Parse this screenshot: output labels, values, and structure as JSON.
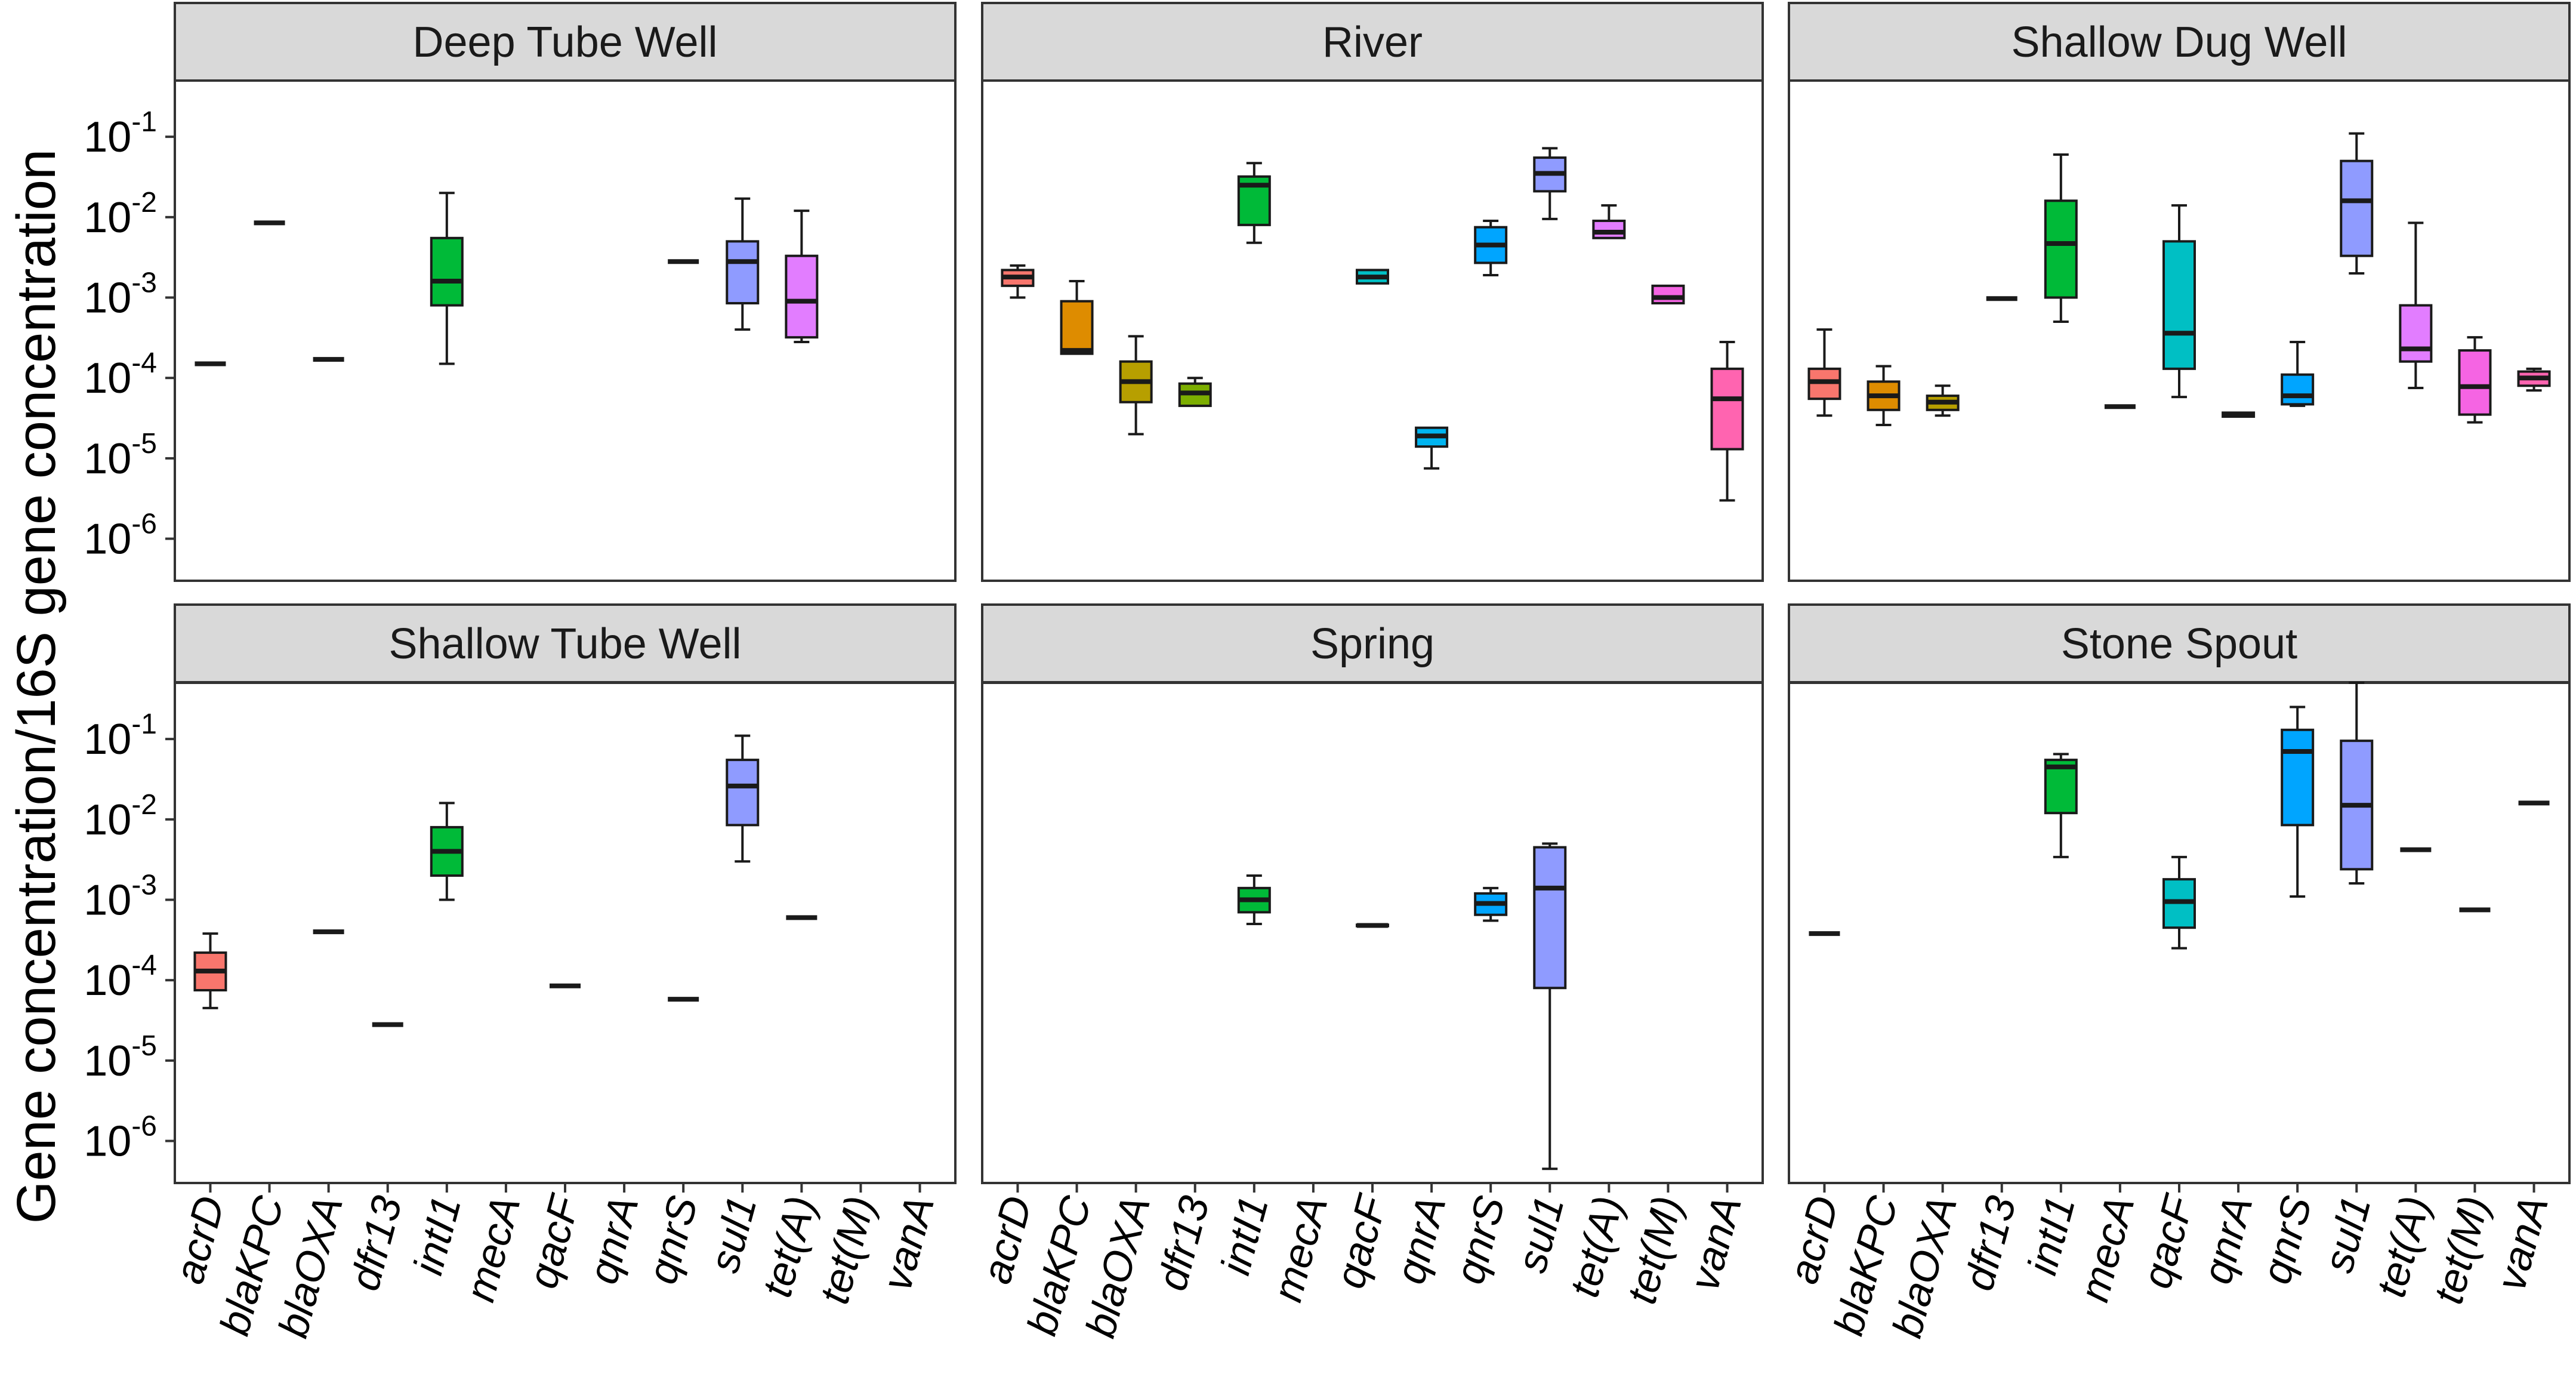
{
  "chart_data": {
    "type": "boxplot",
    "scale": "log10",
    "ylabel": "Gene concentration/16S gene concentration",
    "ylim": [
      3e-07,
      0.5
    ],
    "yticks": [
      0.1,
      0.01,
      0.001,
      0.0001,
      1e-05,
      1e-06
    ],
    "ytick_labels": [
      "10",
      "10",
      "10",
      "10",
      "10",
      "10"
    ],
    "ytick_exponents": [
      "-1",
      "-2",
      "-3",
      "-4",
      "-5",
      "-6"
    ],
    "categories": [
      "acrD",
      "blaKPC",
      "blaOXA",
      "dfr13",
      "intI1",
      "mecA",
      "qacF",
      "qnrA",
      "qnrS",
      "sul1",
      "tet(A)",
      "tet(M)",
      "vanA"
    ],
    "colors": {
      "acrD": "#F8766D",
      "blaKPC": "#DE8C00",
      "blaOXA": "#B79F00",
      "dfr13": "#7CAE00",
      "intI1": "#00BA38",
      "mecA": "#00C08B",
      "qacF": "#00BFC4",
      "qnrA": "#00B4F0",
      "qnrS": "#00A5FF",
      "sul1": "#8F9BFF",
      "tet(A)": "#E27DFF",
      "tet(M)": "#F564E3",
      "vanA": "#FF64B0"
    },
    "panels": [
      {
        "title": "Deep Tube Well",
        "boxes": [
          {
            "gene": "acrD",
            "min": 0.00015,
            "q1": 0.00015,
            "median": 0.00015,
            "q3": 0.00015,
            "max": 0.00015
          },
          {
            "gene": "blaKPC",
            "min": 0.0085,
            "q1": 0.0085,
            "median": 0.0085,
            "q3": 0.0085,
            "max": 0.0085
          },
          {
            "gene": "blaOXA",
            "min": 0.00017,
            "q1": 0.00017,
            "median": 0.00017,
            "q3": 0.00017,
            "max": 0.00017
          },
          {
            "gene": "intI1",
            "min": 0.00015,
            "q1": 0.0008,
            "median": 0.0016,
            "q3": 0.0055,
            "max": 0.02
          },
          {
            "gene": "qnrS",
            "min": 0.0028,
            "q1": 0.0028,
            "median": 0.0028,
            "q3": 0.0028,
            "max": 0.0028
          },
          {
            "gene": "sul1",
            "min": 0.0004,
            "q1": 0.00085,
            "median": 0.0028,
            "q3": 0.005,
            "max": 0.017
          },
          {
            "gene": "tet(A)",
            "min": 0.00028,
            "q1": 0.00032,
            "median": 0.0009,
            "q3": 0.0033,
            "max": 0.012
          }
        ]
      },
      {
        "title": "River",
        "boxes": [
          {
            "gene": "acrD",
            "min": 0.001,
            "q1": 0.0014,
            "median": 0.0018,
            "q3": 0.0022,
            "max": 0.0025
          },
          {
            "gene": "blaKPC",
            "min": 0.0002,
            "q1": 0.0002,
            "median": 0.00022,
            "q3": 0.0009,
            "max": 0.0016
          },
          {
            "gene": "blaOXA",
            "min": 2e-05,
            "q1": 5e-05,
            "median": 9e-05,
            "q3": 0.00016,
            "max": 0.00033
          },
          {
            "gene": "dfr13",
            "min": 4.5e-05,
            "q1": 4.5e-05,
            "median": 6.5e-05,
            "q3": 8.5e-05,
            "max": 0.0001
          },
          {
            "gene": "intI1",
            "min": 0.0048,
            "q1": 0.008,
            "median": 0.025,
            "q3": 0.032,
            "max": 0.047
          },
          {
            "gene": "qacF",
            "min": 0.0015,
            "q1": 0.0015,
            "median": 0.0018,
            "q3": 0.0022,
            "max": 0.0022
          },
          {
            "gene": "qnrA",
            "min": 7.5e-06,
            "q1": 1.4e-05,
            "median": 1.9e-05,
            "q3": 2.4e-05,
            "max": 2.4e-05
          },
          {
            "gene": "qnrS",
            "min": 0.0019,
            "q1": 0.0027,
            "median": 0.0045,
            "q3": 0.0075,
            "max": 0.009
          },
          {
            "gene": "sul1",
            "min": 0.0095,
            "q1": 0.021,
            "median": 0.035,
            "q3": 0.055,
            "max": 0.072
          },
          {
            "gene": "tet(A)",
            "min": 0.0055,
            "q1": 0.0055,
            "median": 0.0065,
            "q3": 0.009,
            "max": 0.014
          },
          {
            "gene": "tet(M)",
            "min": 0.00085,
            "q1": 0.00085,
            "median": 0.001,
            "q3": 0.0014,
            "max": 0.0014
          },
          {
            "gene": "vanA",
            "min": 3e-06,
            "q1": 1.3e-05,
            "median": 5.5e-05,
            "q3": 0.00013,
            "max": 0.00028
          }
        ]
      },
      {
        "title": "Shallow Dug Well",
        "boxes": [
          {
            "gene": "acrD",
            "min": 3.4e-05,
            "q1": 5.5e-05,
            "median": 9e-05,
            "q3": 0.00013,
            "max": 0.0004
          },
          {
            "gene": "blaKPC",
            "min": 2.6e-05,
            "q1": 4e-05,
            "median": 6e-05,
            "q3": 9e-05,
            "max": 0.00014
          },
          {
            "gene": "blaOXA",
            "min": 3.4e-05,
            "q1": 4e-05,
            "median": 5e-05,
            "q3": 6e-05,
            "max": 8e-05
          },
          {
            "gene": "dfr13",
            "min": 0.00097,
            "q1": 0.00097,
            "median": 0.00097,
            "q3": 0.00097,
            "max": 0.00097
          },
          {
            "gene": "intI1",
            "min": 0.0005,
            "q1": 0.001,
            "median": 0.0047,
            "q3": 0.016,
            "max": 0.06
          },
          {
            "gene": "mecA",
            "min": 4.4e-05,
            "q1": 4.4e-05,
            "median": 4.4e-05,
            "q3": 4.4e-05,
            "max": 4.4e-05
          },
          {
            "gene": "qacF",
            "min": 5.8e-05,
            "q1": 0.00013,
            "median": 0.00036,
            "q3": 0.005,
            "max": 0.014
          },
          {
            "gene": "qnrA",
            "min": 3.3e-05,
            "q1": 3.3e-05,
            "median": 3.5e-05,
            "q3": 3.7e-05,
            "max": 3.7e-05
          },
          {
            "gene": "qnrS",
            "min": 4.5e-05,
            "q1": 4.7e-05,
            "median": 6e-05,
            "q3": 0.00011,
            "max": 0.00028
          },
          {
            "gene": "sul1",
            "min": 0.002,
            "q1": 0.0033,
            "median": 0.016,
            "q3": 0.05,
            "max": 0.11
          },
          {
            "gene": "tet(A)",
            "min": 7.5e-05,
            "q1": 0.00016,
            "median": 0.00023,
            "q3": 0.0008,
            "max": 0.0085
          },
          {
            "gene": "tet(M)",
            "min": 2.8e-05,
            "q1": 3.5e-05,
            "median": 7.8e-05,
            "q3": 0.00022,
            "max": 0.00032
          },
          {
            "gene": "vanA",
            "min": 7e-05,
            "q1": 8e-05,
            "median": 0.0001,
            "q3": 0.00012,
            "max": 0.00013
          }
        ]
      },
      {
        "title": "Shallow Tube Well",
        "boxes": [
          {
            "gene": "acrD",
            "min": 4.5e-05,
            "q1": 7.5e-05,
            "median": 0.00013,
            "q3": 0.00022,
            "max": 0.00038
          },
          {
            "gene": "blaOXA",
            "min": 0.0004,
            "q1": 0.0004,
            "median": 0.0004,
            "q3": 0.0004,
            "max": 0.0004
          },
          {
            "gene": "dfr13",
            "min": 2.8e-05,
            "q1": 2.8e-05,
            "median": 2.8e-05,
            "q3": 2.8e-05,
            "max": 2.8e-05
          },
          {
            "gene": "intI1",
            "min": 0.001,
            "q1": 0.002,
            "median": 0.004,
            "q3": 0.008,
            "max": 0.016
          },
          {
            "gene": "qacF",
            "min": 8.5e-05,
            "q1": 8.5e-05,
            "median": 8.5e-05,
            "q3": 8.5e-05,
            "max": 8.5e-05
          },
          {
            "gene": "qnrS",
            "min": 5.8e-05,
            "q1": 5.8e-05,
            "median": 5.8e-05,
            "q3": 5.8e-05,
            "max": 5.8e-05
          },
          {
            "gene": "sul1",
            "min": 0.003,
            "q1": 0.0085,
            "median": 0.026,
            "q3": 0.055,
            "max": 0.11
          },
          {
            "gene": "tet(A)",
            "min": 0.0006,
            "q1": 0.0006,
            "median": 0.0006,
            "q3": 0.0006,
            "max": 0.0006
          }
        ]
      },
      {
        "title": "Spring",
        "boxes": [
          {
            "gene": "intI1",
            "min": 0.0005,
            "q1": 0.0007,
            "median": 0.001,
            "q3": 0.0014,
            "max": 0.002
          },
          {
            "gene": "qacF",
            "min": 0.00047,
            "q1": 0.00047,
            "median": 0.00048,
            "q3": 0.00049,
            "max": 0.00049
          },
          {
            "gene": "qnrS",
            "min": 0.00055,
            "q1": 0.00065,
            "median": 0.0009,
            "q3": 0.0012,
            "max": 0.0014
          },
          {
            "gene": "sul1",
            "min": 4.5e-07,
            "q1": 8e-05,
            "median": 0.0014,
            "q3": 0.0045,
            "max": 0.005
          }
        ]
      },
      {
        "title": "Stone Spout",
        "boxes": [
          {
            "gene": "acrD",
            "min": 0.00038,
            "q1": 0.00038,
            "median": 0.00038,
            "q3": 0.00038,
            "max": 0.00038
          },
          {
            "gene": "intI1",
            "min": 0.0034,
            "q1": 0.012,
            "median": 0.045,
            "q3": 0.055,
            "max": 0.065
          },
          {
            "gene": "qacF",
            "min": 0.00025,
            "q1": 0.00045,
            "median": 0.00095,
            "q3": 0.0018,
            "max": 0.0034
          },
          {
            "gene": "qnrS",
            "min": 0.0011,
            "q1": 0.0085,
            "median": 0.07,
            "q3": 0.13,
            "max": 0.25
          },
          {
            "gene": "sul1",
            "min": 0.0016,
            "q1": 0.0024,
            "median": 0.015,
            "q3": 0.095,
            "max": 0.5
          },
          {
            "gene": "tet(A)",
            "min": 0.0042,
            "q1": 0.0042,
            "median": 0.0042,
            "q3": 0.0042,
            "max": 0.0042
          },
          {
            "gene": "tet(M)",
            "min": 0.00075,
            "q1": 0.00075,
            "median": 0.00075,
            "q3": 0.00075,
            "max": 0.00075
          },
          {
            "gene": "vanA",
            "min": 0.016,
            "q1": 0.016,
            "median": 0.016,
            "q3": 0.016,
            "max": 0.016
          }
        ]
      }
    ]
  }
}
